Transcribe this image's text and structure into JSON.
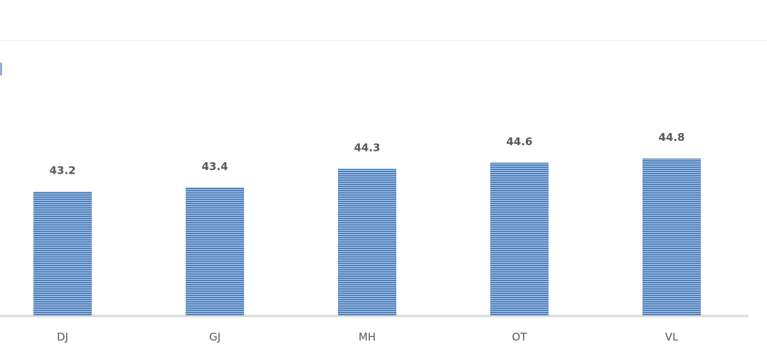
{
  "chart_data": {
    "type": "bar",
    "categories": [
      "DJ",
      "GJ",
      "MH",
      "OT",
      "VL"
    ],
    "values": [
      43.2,
      43.4,
      44.3,
      44.6,
      44.8
    ],
    "color": "#4f81bd",
    "ylim": [
      37.2,
      50
    ]
  }
}
